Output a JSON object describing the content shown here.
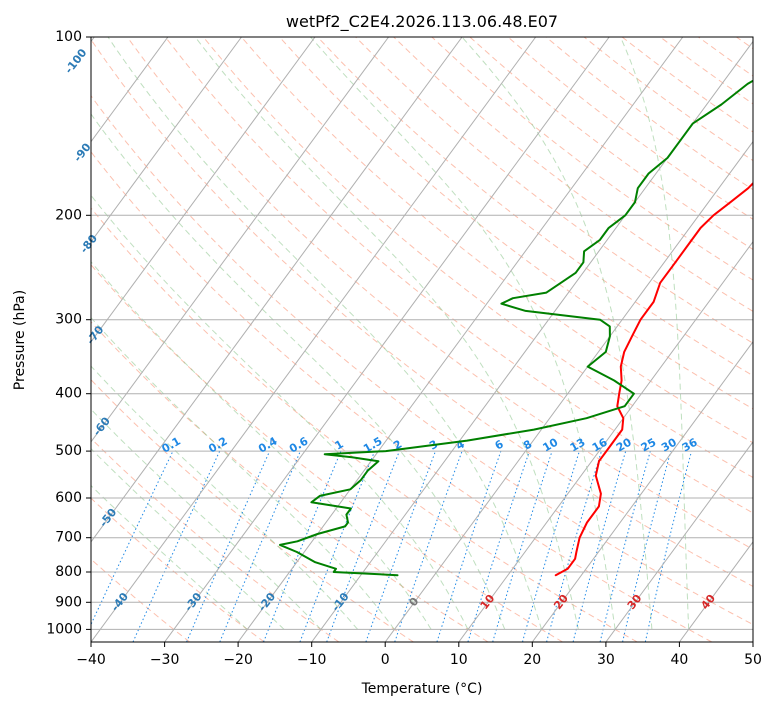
{
  "chart_data": {
    "type": "line",
    "title": "wetPf2_C2E4.2026.113.06.48.E07",
    "xlabel": "Temperature (°C)",
    "ylabel": "Pressure (hPa)",
    "xlim": [
      -40,
      50
    ],
    "ylim": [
      1050,
      100
    ],
    "y_scale": "log",
    "x_ticks": [
      "−40",
      "−30",
      "−20",
      "−10",
      "0",
      "10",
      "20",
      "30",
      "40",
      "50"
    ],
    "y_ticks": [
      "100",
      "200",
      "300",
      "400",
      "500",
      "600",
      "700",
      "800",
      "900",
      "1000"
    ],
    "grid": true,
    "background_lines": {
      "isotherm_labels": [
        "-100",
        "-90",
        "-80",
        "-70",
        "-60",
        "-50",
        "-40",
        "-30",
        "-20",
        "-10",
        "0",
        "10",
        "20",
        "30",
        "40"
      ],
      "mixing_ratio_labels": [
        "0.1",
        "0.2",
        "0.4",
        "0.6",
        "1",
        "1.5",
        "2",
        "3",
        "4",
        "6",
        "8",
        "10",
        "13",
        "16",
        "20",
        "25",
        "30",
        "36"
      ]
    },
    "series": [
      {
        "key": "temperature",
        "color": "#ff0000",
        "p": [
          810,
          790,
          760,
          740,
          700,
          660,
          620,
          590,
          550,
          520,
          490,
          460,
          440,
          420,
          400,
          380,
          360,
          340,
          320,
          300,
          280,
          260,
          240,
          220,
          210,
          200,
          190,
          180,
          170,
          160,
          150,
          140,
          130,
          120,
          110,
          100
        ],
        "t": [
          16.5,
          17.5,
          17.5,
          17.0,
          16.0,
          15.5,
          15.5,
          14.5,
          12.0,
          11.0,
          11.0,
          11.0,
          10.0,
          8.0,
          7.0,
          6.0,
          4.5,
          3.5,
          3.0,
          2.5,
          2.5,
          1.5,
          1.5,
          1.5,
          1.5,
          2.0,
          3.0,
          4.0,
          4.5,
          5.0,
          6.0,
          7.0,
          8.0,
          8.0,
          9.0,
          11.0
        ]
      },
      {
        "key": "dewpoint",
        "color": "#008000",
        "p": [
          810,
          800,
          790,
          770,
          740,
          720,
          710,
          690,
          670,
          660,
          640,
          625,
          610,
          595,
          580,
          560,
          540,
          520,
          512,
          506,
          500,
          480,
          460,
          440,
          420,
          400,
          380,
          360,
          340,
          320,
          308,
          300,
          290,
          282,
          276,
          270,
          260,
          250,
          240,
          230,
          220,
          210,
          200,
          190,
          180,
          170,
          160,
          150,
          140,
          130,
          120,
          110,
          100
        ],
        "t": [
          -5,
          -14,
          -14,
          -17.5,
          -21,
          -24,
          -22,
          -20,
          -17,
          -17,
          -18,
          -18,
          -24,
          -23.5,
          -20,
          -19.5,
          -19.5,
          -19,
          -23,
          -27,
          -19,
          -9,
          -1,
          5,
          9,
          9,
          5,
          0,
          1,
          0,
          -1,
          -3,
          -14,
          -18,
          -17,
          -13,
          -12,
          -11,
          -11,
          -12,
          -11,
          -11,
          -10,
          -10,
          -11,
          -11,
          -10,
          -10,
          -10,
          -8,
          -6.5,
          -3.5,
          -2.0
        ]
      }
    ]
  }
}
